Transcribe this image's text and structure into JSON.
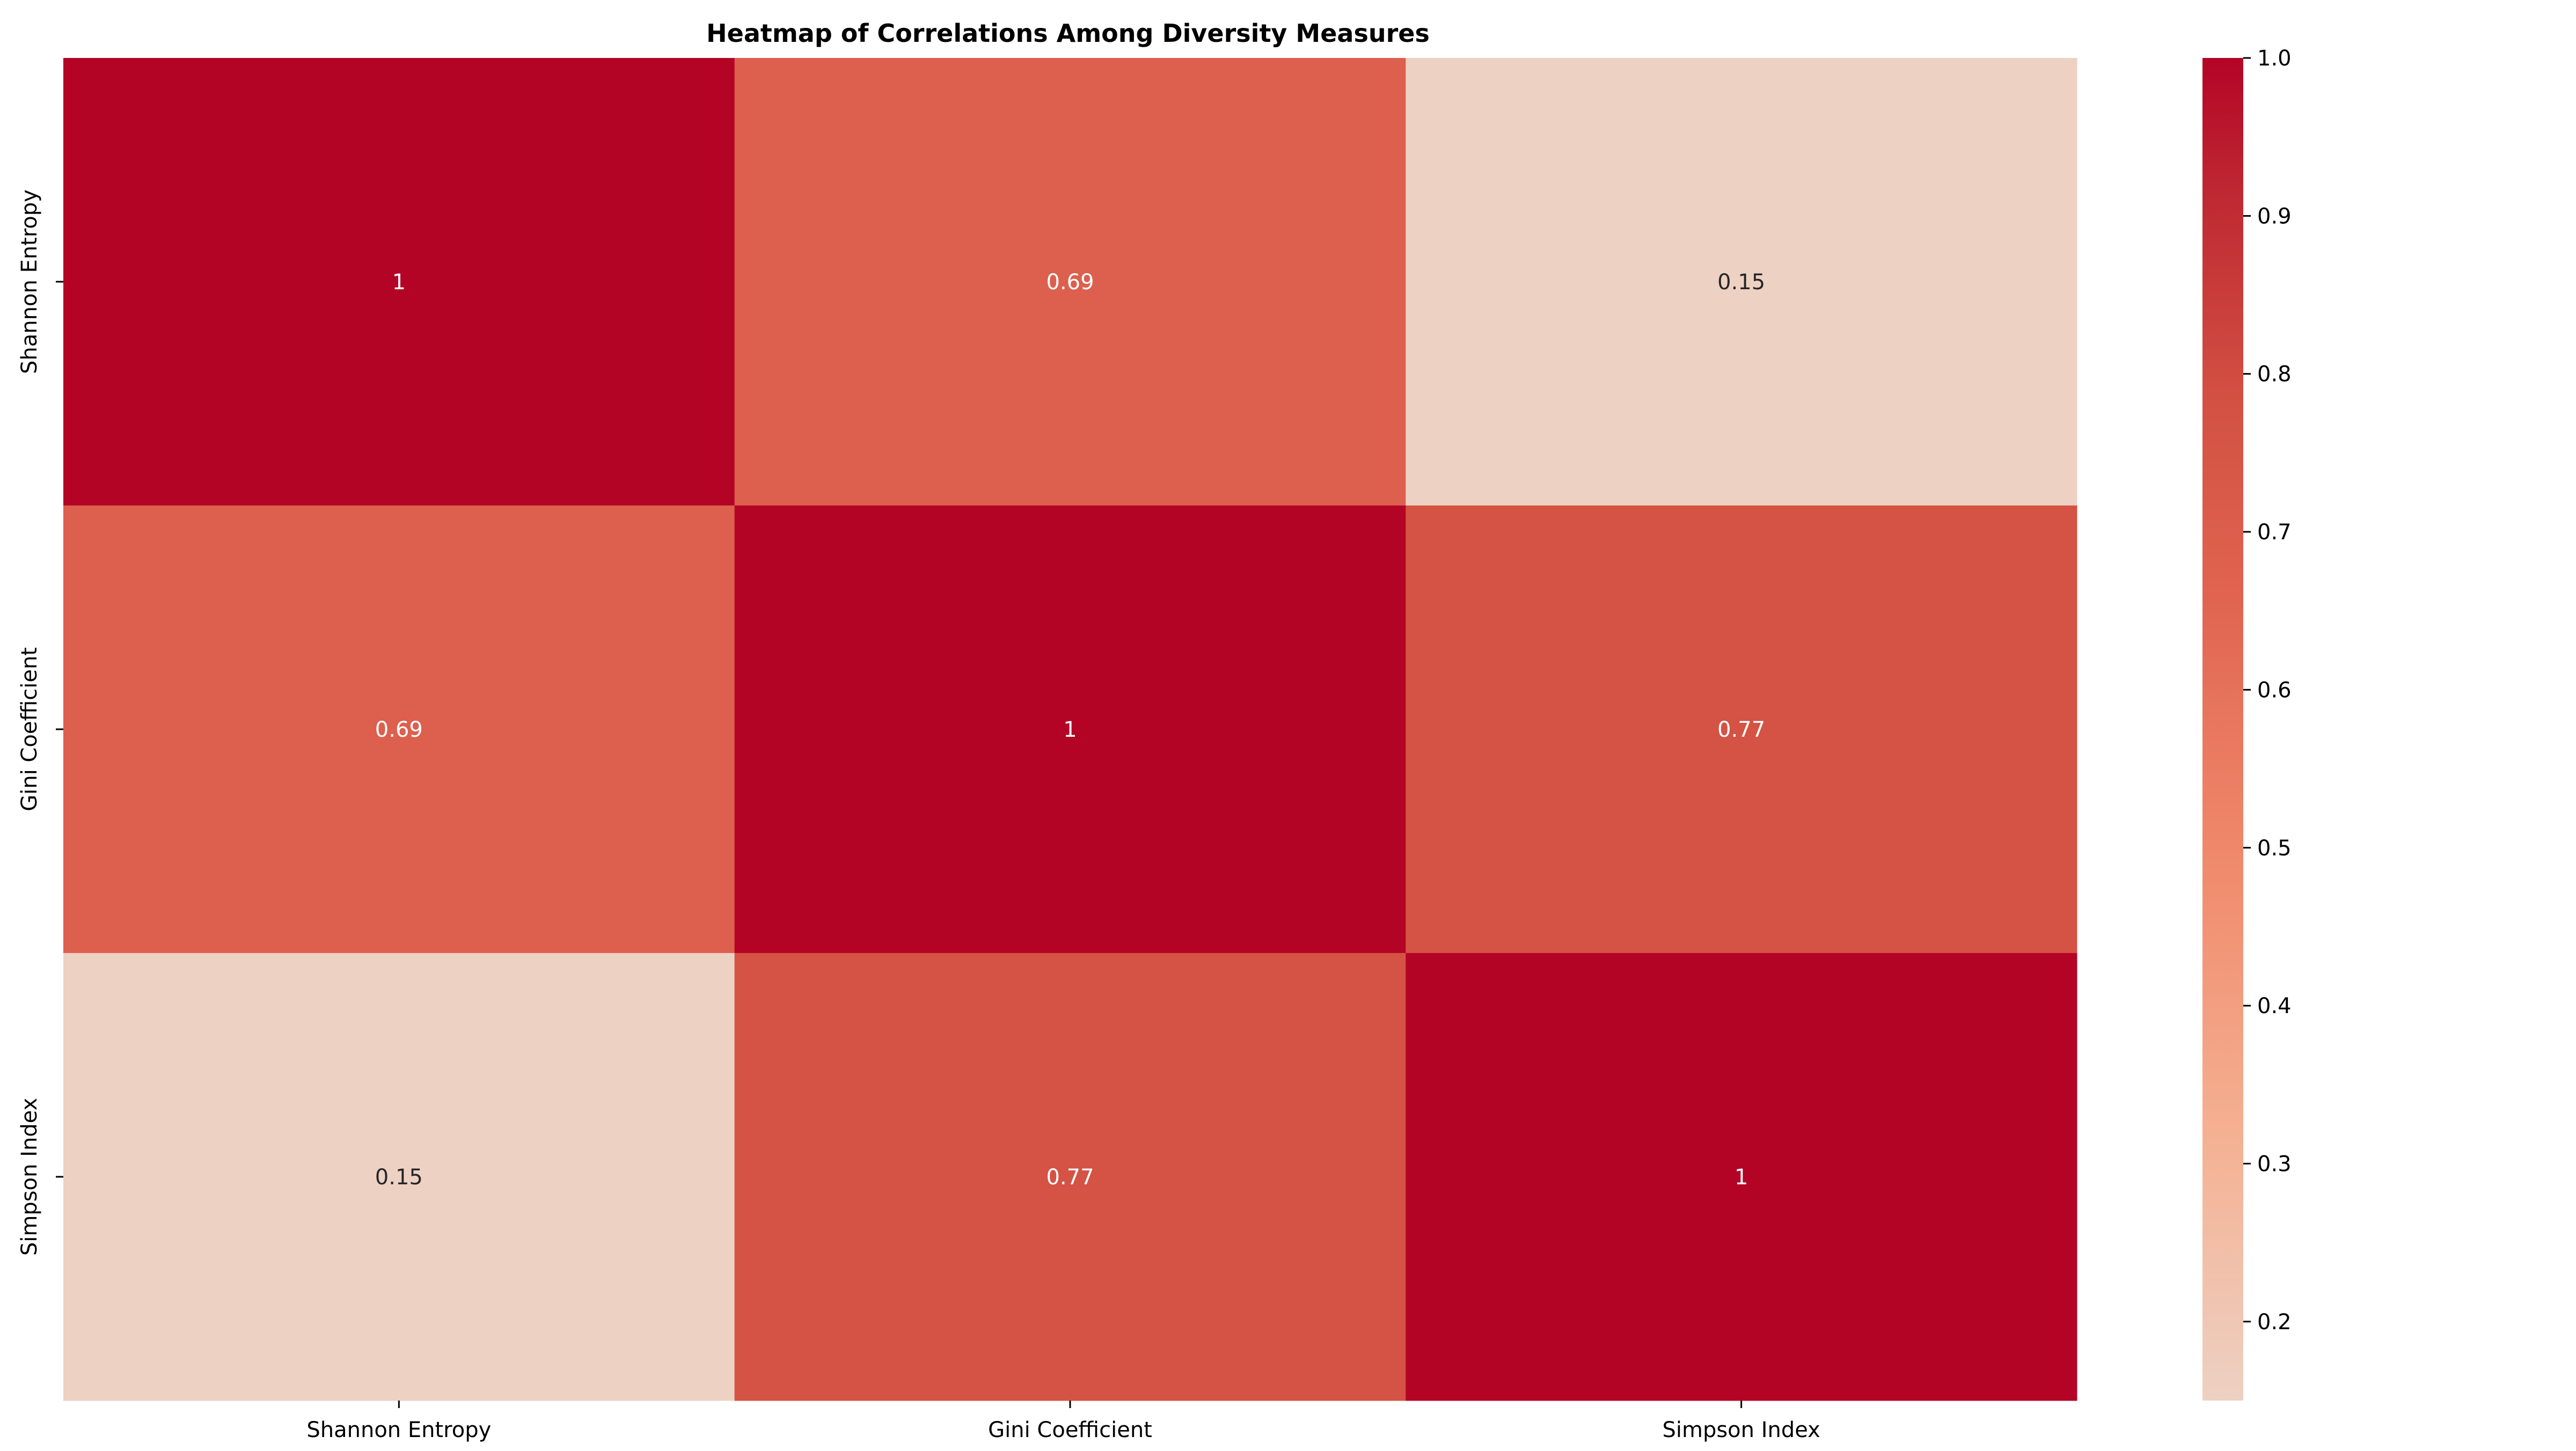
{
  "chart_data": {
    "type": "heatmap",
    "title": "Heatmap of Correlations Among Diversity Measures",
    "x_categories": [
      "Shannon Entropy",
      "Gini Coefficient",
      "Simpson Index"
    ],
    "y_categories": [
      "Shannon Entropy",
      "Gini Coefficient",
      "Simpson Index"
    ],
    "values": [
      [
        1,
        0.69,
        0.15
      ],
      [
        0.69,
        1,
        0.77
      ],
      [
        0.15,
        0.77,
        1
      ]
    ],
    "cell_labels": [
      [
        "1",
        "0.69",
        "0.15"
      ],
      [
        "0.69",
        "1",
        "0.77"
      ],
      [
        "0.15",
        "0.77",
        "1"
      ]
    ],
    "colormap": "coolwarm (upper half)",
    "colorbar": {
      "range": [
        0.15,
        1.0
      ],
      "ticks": [
        0.2,
        0.3,
        0.4,
        0.5,
        0.6,
        0.7,
        0.8,
        0.9,
        1.0
      ],
      "tick_labels": [
        "0.2",
        "0.3",
        "0.4",
        "0.5",
        "0.6",
        "0.7",
        "0.8",
        "0.9",
        "1.0"
      ],
      "position": "right"
    },
    "colors": {
      "low": "#edd1c2",
      "mid_0_7": "#e67059",
      "mid_0_77": "#d85b48",
      "high": "#b40426"
    }
  }
}
